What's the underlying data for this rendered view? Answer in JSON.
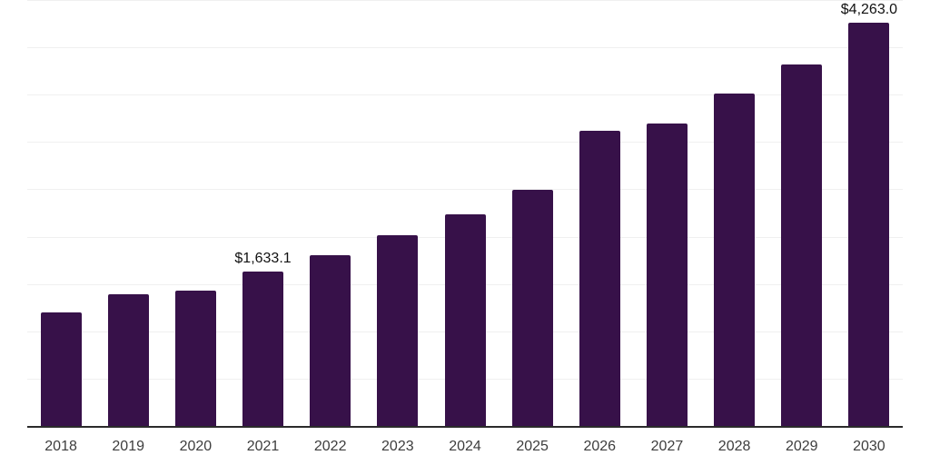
{
  "chart_data": {
    "type": "bar",
    "title": "",
    "xlabel": "",
    "ylabel": "",
    "categories": [
      "2018",
      "2019",
      "2020",
      "2021",
      "2022",
      "2023",
      "2024",
      "2025",
      "2026",
      "2027",
      "2028",
      "2029",
      "2030"
    ],
    "values": [
      1200,
      1395,
      1425,
      1633.1,
      1805,
      2015,
      2235,
      2495,
      3115,
      3200,
      3515,
      3815,
      4263
    ],
    "value_prefix": "$",
    "data_labels": [
      {
        "category": "2021",
        "text": "$1,633.1"
      },
      {
        "category": "2030",
        "text": "$4,263.0"
      }
    ],
    "ylim": [
      0,
      4500
    ],
    "gridline_step": 500,
    "grid": "horizontal-light",
    "legend": "none",
    "y_tick_labels_visible": false,
    "colors": {
      "bar": "#371149",
      "gridline": "#f0f0f0",
      "axis_line": "#2b2b2b",
      "tick_label": "#3d3d3d",
      "data_label": "#111111",
      "background": "#ffffff"
    }
  }
}
